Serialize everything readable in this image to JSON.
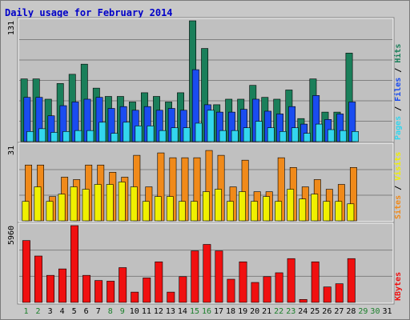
{
  "chart_data": {
    "type": "bar",
    "title": "Daily usage for February 2014",
    "categories": [
      "1",
      "2",
      "3",
      "4",
      "5",
      "6",
      "7",
      "8",
      "9",
      "10",
      "11",
      "12",
      "13",
      "14",
      "15",
      "16",
      "17",
      "18",
      "19",
      "20",
      "21",
      "22",
      "23",
      "24",
      "25",
      "26",
      "27",
      "28",
      "29",
      "30",
      "31"
    ],
    "weekend_days": [
      1,
      2,
      8,
      9,
      15,
      16,
      22,
      23,
      29,
      30
    ],
    "colors": {
      "hits": "#1a7f5a",
      "files": "#1a4cf0",
      "pages": "#33d6ee",
      "visits": "#f0f000",
      "sites": "#f08a1a",
      "kbytes": "#f01010",
      "title": "#0000c8",
      "weekday_label": "#000000",
      "weekend_label": "#1a7f2a"
    },
    "panels": [
      {
        "name": "hits-files-pages",
        "ymax": 131,
        "ytick_label": "131",
        "legend": [
          {
            "text": "Pages",
            "color": "#33d6ee"
          },
          {
            "text": " / ",
            "color": "#000000"
          },
          {
            "text": "Files",
            "color": "#1a4cf0"
          },
          {
            "text": " / ",
            "color": "#000000"
          },
          {
            "text": "Hits",
            "color": "#1a7f5a"
          }
        ],
        "series": [
          {
            "name": "Hits",
            "color": "#1a7f5a",
            "values": [
              68,
              68,
              46,
              63,
              73,
              84,
              58,
              49,
              49,
              43,
              53,
              49,
              43,
              53,
              131,
              101,
              40,
              46,
              46,
              61,
              48,
              46,
              56,
              25,
              68,
              32,
              32,
              96,
              0,
              0,
              0
            ]
          },
          {
            "name": "Files",
            "color": "#1a4cf0",
            "values": [
              48,
              48,
              28,
              39,
              43,
              46,
              48,
              36,
              38,
              34,
              38,
              34,
              36,
              34,
              78,
              40,
              32,
              32,
              35,
              46,
              33,
              30,
              38,
              19,
              50,
              24,
              30,
              43,
              0,
              0,
              0
            ]
          },
          {
            "name": "Pages",
            "color": "#33d6ee",
            "values": [
              11,
              14,
              10,
              11,
              12,
              12,
              21,
              9,
              21,
              17,
              17,
              12,
              15,
              15,
              20,
              34,
              12,
              12,
              15,
              22,
              15,
              11,
              15,
              9,
              19,
              13,
              12,
              11,
              0,
              0,
              0
            ]
          }
        ]
      },
      {
        "name": "visits-sites",
        "ymax": 31,
        "ytick_label": "31",
        "legend": [
          {
            "text": "Sites",
            "color": "#f08a1a"
          },
          {
            "text": " / ",
            "color": "#000000"
          },
          {
            "text": "Visits",
            "color": "#f0f000"
          }
        ],
        "series": [
          {
            "name": "Sites",
            "color": "#f08a1a",
            "values": [
              23,
              23,
              10,
              18,
              17,
              23,
              23,
              20,
              18,
              27,
              14,
              28,
              26,
              26,
              26,
              29,
              27,
              14,
              25,
              12,
              12,
              26,
              22,
              14,
              17,
              13,
              15,
              22,
              0,
              0,
              0
            ]
          },
          {
            "name": "Visits",
            "color": "#f0f000",
            "values": [
              8,
              14,
              8,
              11,
              14,
              13,
              15,
              15,
              16,
              14,
              8,
              10,
              10,
              8,
              8,
              12,
              13,
              8,
              12,
              8,
              10,
              8,
              13,
              9,
              11,
              8,
              8,
              7,
              0,
              0,
              0
            ]
          }
        ]
      },
      {
        "name": "kbytes",
        "ymax": 5960,
        "ytick_label": "5960",
        "legend": [
          {
            "text": "KBytes",
            "color": "#f01010"
          }
        ],
        "series": [
          {
            "name": "KBytes",
            "color": "#f01010",
            "values": [
              4800,
              3600,
              2100,
              2600,
              5960,
              2100,
              1700,
              1650,
              2700,
              800,
              1900,
              3150,
              800,
              2000,
              4000,
              4500,
              4000,
              1800,
              3150,
              1550,
              2000,
              2300,
              3400,
              230,
              3150,
              1200,
              1450,
              3400,
              0,
              0,
              0
            ]
          }
        ]
      }
    ]
  }
}
